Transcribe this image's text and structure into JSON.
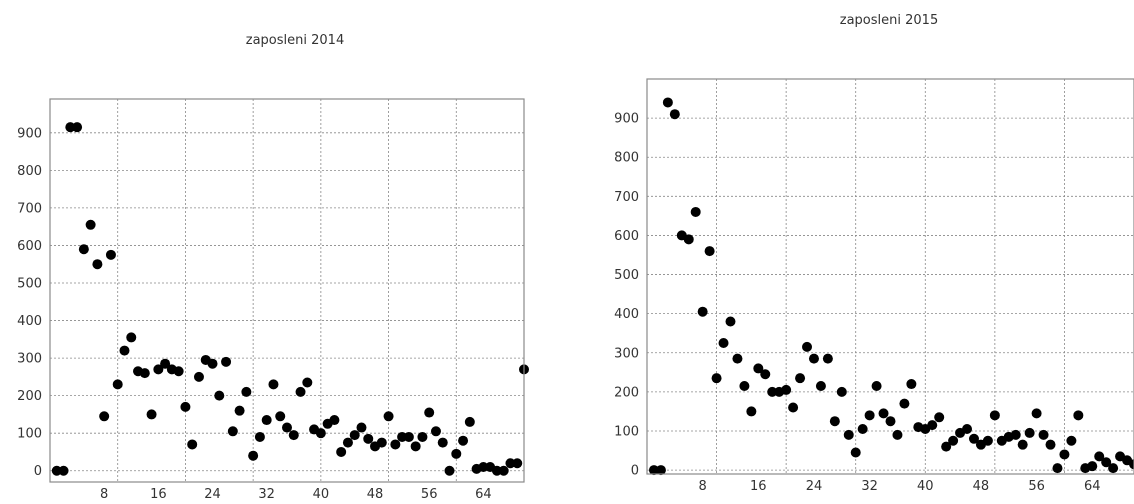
{
  "chart_data": [
    {
      "type": "scatter",
      "title": "zaposleni 2014",
      "xlabel": "",
      "ylabel": "",
      "xlim": [
        0,
        70
      ],
      "ylim": [
        -30,
        990
      ],
      "xticks": [
        8,
        16,
        24,
        32,
        40,
        48,
        56,
        64
      ],
      "yticks": [
        0,
        100,
        200,
        300,
        400,
        500,
        600,
        700,
        800,
        900
      ],
      "vgrid": [
        10,
        20,
        30,
        40,
        50,
        60
      ],
      "grid": true,
      "series": [
        {
          "x": [
            1,
            2,
            3,
            4,
            5,
            6,
            7,
            8,
            9,
            10,
            11,
            12,
            13,
            14,
            15,
            16,
            17,
            18,
            19,
            20,
            21,
            22,
            23,
            24,
            25,
            26,
            27,
            28,
            29,
            30,
            31,
            32,
            33,
            34,
            35,
            36,
            37,
            38,
            39,
            40,
            41,
            42,
            43,
            44,
            45,
            46,
            47,
            48,
            49,
            50,
            51,
            52,
            53,
            54,
            55,
            56,
            57,
            58,
            59,
            60,
            61,
            62,
            63,
            64,
            65,
            66,
            67,
            68,
            69,
            70
          ],
          "y": [
            0,
            0,
            915,
            915,
            590,
            655,
            550,
            145,
            575,
            230,
            320,
            355,
            265,
            260,
            150,
            270,
            285,
            270,
            265,
            170,
            70,
            250,
            295,
            285,
            200,
            290,
            105,
            160,
            210,
            40,
            90,
            135,
            230,
            145,
            115,
            95,
            210,
            235,
            110,
            100,
            125,
            135,
            50,
            75,
            95,
            115,
            85,
            65,
            75,
            145,
            70,
            90,
            90,
            65,
            90,
            155,
            105,
            75,
            0,
            45,
            80,
            130,
            5,
            10,
            10,
            0,
            0,
            20,
            20,
            270
          ]
        }
      ]
    },
    {
      "type": "scatter",
      "title": "zaposleni 2015",
      "xlabel": "",
      "ylabel": "",
      "xlim": [
        0,
        70
      ],
      "ylim": [
        -10,
        1000
      ],
      "xticks": [
        8,
        16,
        24,
        32,
        40,
        48,
        56,
        64
      ],
      "yticks": [
        0,
        100,
        200,
        300,
        400,
        500,
        600,
        700,
        800,
        900
      ],
      "vgrid": [
        10,
        20,
        30,
        40,
        50,
        60
      ],
      "grid": true,
      "series": [
        {
          "x": [
            1,
            2,
            3,
            4,
            5,
            6,
            7,
            8,
            9,
            10,
            11,
            12,
            13,
            14,
            15,
            16,
            17,
            18,
            19,
            20,
            21,
            22,
            23,
            24,
            25,
            26,
            27,
            28,
            29,
            30,
            31,
            32,
            33,
            34,
            35,
            36,
            37,
            38,
            39,
            40,
            41,
            42,
            43,
            44,
            45,
            46,
            47,
            48,
            49,
            50,
            51,
            52,
            53,
            54,
            55,
            56,
            57,
            58,
            59,
            60,
            61,
            62,
            63,
            64,
            65,
            66,
            67,
            68,
            69,
            70
          ],
          "y": [
            0,
            0,
            940,
            910,
            600,
            590,
            660,
            405,
            560,
            235,
            325,
            380,
            285,
            215,
            150,
            260,
            245,
            200,
            200,
            205,
            160,
            235,
            315,
            285,
            215,
            285,
            125,
            200,
            90,
            45,
            105,
            140,
            215,
            145,
            125,
            90,
            170,
            220,
            110,
            105,
            115,
            135,
            60,
            75,
            95,
            105,
            80,
            65,
            75,
            140,
            75,
            85,
            90,
            65,
            95,
            145,
            90,
            65,
            5,
            40,
            75,
            140,
            5,
            10,
            35,
            20,
            5,
            35,
            25,
            15
          ]
        }
      ]
    }
  ]
}
